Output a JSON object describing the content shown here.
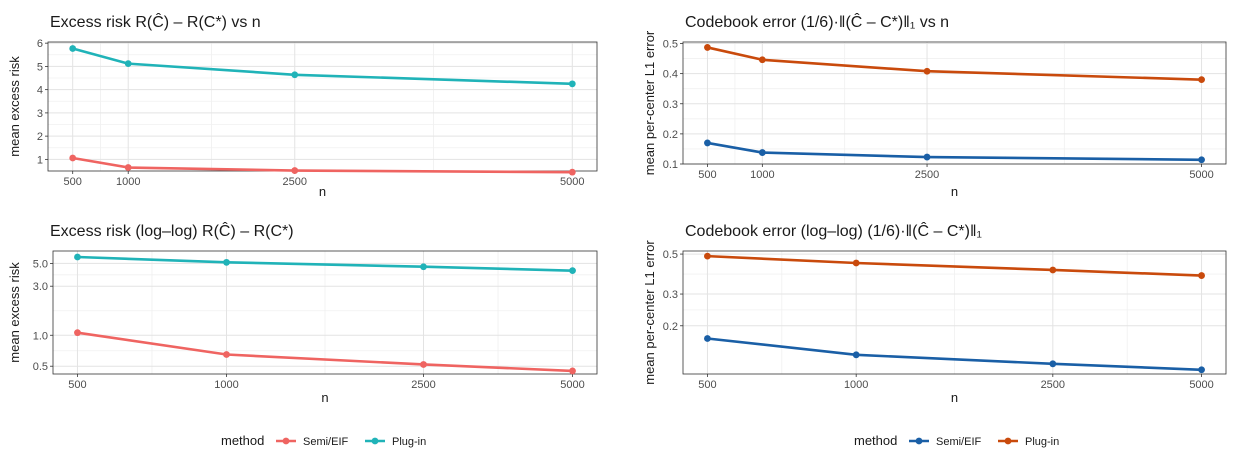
{
  "chart_data": [
    {
      "type": "line",
      "title": "Excess risk  R(Ĉ) – R(C*)  vs  n",
      "xlabel": "n",
      "ylabel": "mean excess risk",
      "x": [
        500,
        1000,
        2500,
        5000
      ],
      "x_ticks": [
        500,
        1000,
        2500,
        5000
      ],
      "y_ticks": [
        1,
        2,
        3,
        4,
        5,
        6
      ],
      "ylim": [
        0.5,
        6.05
      ],
      "x_scale": "linear",
      "y_scale": "linear",
      "grid": true,
      "series": [
        {
          "name": "Semi/EIF",
          "color": "#ef6461",
          "values": [
            1.06,
            0.65,
            0.52,
            0.45
          ]
        },
        {
          "name": "Plug-in",
          "color": "#20b3b8",
          "values": [
            5.77,
            5.12,
            4.64,
            4.25
          ]
        }
      ]
    },
    {
      "type": "line",
      "title": "Codebook error  (1/6)·‖(Ĉ – C*)‖₁  vs  n",
      "xlabel": "n",
      "ylabel": "mean per-center L1 error",
      "x": [
        500,
        1000,
        2500,
        5000
      ],
      "x_ticks": [
        500,
        1000,
        2500,
        5000
      ],
      "y_ticks": [
        0.1,
        0.2,
        0.3,
        0.4,
        0.5
      ],
      "ylim": [
        0.1,
        0.505
      ],
      "x_scale": "linear",
      "y_scale": "linear",
      "grid": true,
      "series": [
        {
          "name": "Semi/EIF",
          "color": "#1a5fa6",
          "values": [
            0.17,
            0.138,
            0.123,
            0.114
          ]
        },
        {
          "name": "Plug-in",
          "color": "#c94a0c",
          "values": [
            0.487,
            0.446,
            0.408,
            0.38
          ]
        }
      ]
    },
    {
      "type": "line",
      "title": "Excess risk  (log–log)  R(Ĉ) – R(C*)",
      "xlabel": "n",
      "ylabel": "mean excess risk",
      "x": [
        500,
        1000,
        2500,
        5000
      ],
      "x_ticks": [
        500,
        1000,
        2500,
        5000
      ],
      "y_ticks": [
        0.5,
        1.0,
        3.0,
        5.0
      ],
      "y_tick_labels": [
        "0.5",
        "1.0",
        "3.0",
        "5.0"
      ],
      "ylim": [
        0.42,
        6.6
      ],
      "x_scale": "log",
      "y_scale": "log",
      "grid": true,
      "series": [
        {
          "name": "Semi/EIF",
          "color": "#ef6461",
          "values": [
            1.06,
            0.65,
            0.52,
            0.45
          ]
        },
        {
          "name": "Plug-in",
          "color": "#20b3b8",
          "values": [
            5.77,
            5.12,
            4.64,
            4.25
          ]
        }
      ]
    },
    {
      "type": "line",
      "title": "Codebook error  (log–log)  (1/6)·‖(Ĉ – C*)‖₁",
      "xlabel": "n",
      "ylabel": "mean per-center L1 error",
      "x": [
        500,
        1000,
        2500,
        5000
      ],
      "x_ticks": [
        500,
        1000,
        2500,
        5000
      ],
      "y_ticks": [
        0.2,
        0.3,
        0.5
      ],
      "y_tick_labels": [
        "0.2",
        "0.3",
        "0.5"
      ],
      "ylim": [
        0.108,
        0.52
      ],
      "x_scale": "log",
      "y_scale": "log",
      "grid": true,
      "series": [
        {
          "name": "Semi/EIF",
          "color": "#1a5fa6",
          "values": [
            0.17,
            0.138,
            0.123,
            0.114
          ]
        },
        {
          "name": "Plug-in",
          "color": "#c94a0c",
          "values": [
            0.487,
            0.446,
            0.408,
            0.38
          ]
        }
      ]
    }
  ],
  "legends": [
    {
      "title": "method",
      "position": "bottom-left",
      "entries": [
        {
          "label": "Semi/EIF",
          "color": "#ef6461"
        },
        {
          "label": "Plug-in",
          "color": "#20b3b8"
        }
      ]
    },
    {
      "title": "method",
      "position": "bottom-right",
      "entries": [
        {
          "label": "Semi/EIF",
          "color": "#1a5fa6"
        },
        {
          "label": "Plug-in",
          "color": "#c94a0c"
        }
      ]
    }
  ]
}
